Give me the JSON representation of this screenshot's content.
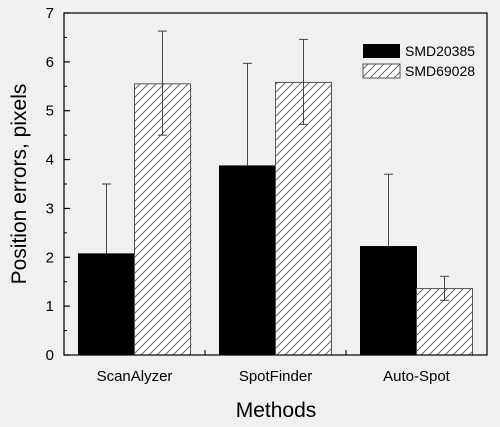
{
  "chart_data": {
    "type": "bar",
    "categories": [
      "ScanAlyzer",
      "SpotFinder",
      "Auto-Spot"
    ],
    "series": [
      {
        "name": "SMD20385",
        "values": [
          2.07,
          3.87,
          2.22
        ],
        "error_upper": [
          3.5,
          5.97,
          3.7
        ],
        "fill": "solid",
        "color": "#000000"
      },
      {
        "name": "SMD69028",
        "values": [
          5.55,
          5.58,
          1.36
        ],
        "error_upper": [
          6.63,
          6.46,
          1.61
        ],
        "error_lower": [
          4.5,
          4.72,
          1.12
        ],
        "fill": "hatched",
        "color": "#ffffff"
      }
    ],
    "xlabel": "Methods",
    "ylabel": "Position errors,  pixels",
    "ylim": [
      0,
      7
    ],
    "yticks": [
      "0",
      "1",
      "2",
      "3",
      "4",
      "5",
      "6",
      "7"
    ],
    "grid": false,
    "legend_position": "top-right"
  }
}
